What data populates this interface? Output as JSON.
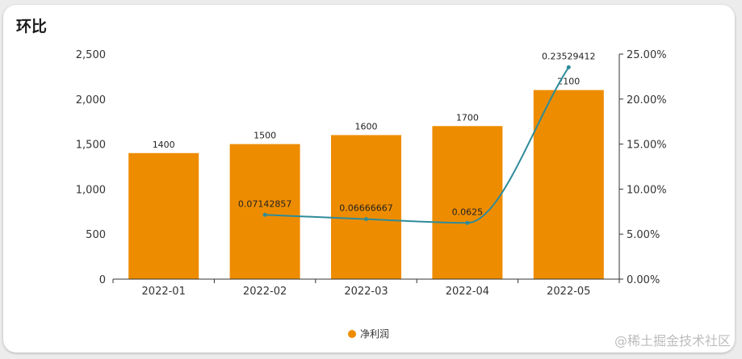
{
  "title": "环比",
  "watermark": "@稀土掘金技术社区",
  "colors": {
    "bar": "#EE8C00",
    "line": "#2E8B9A",
    "axis": "#333333"
  },
  "chart_data": {
    "type": "bar",
    "categories": [
      "2022-01",
      "2022-02",
      "2022-03",
      "2022-04",
      "2022-05"
    ],
    "series": [
      {
        "name": "净利润",
        "type": "bar",
        "axis": "left",
        "values": [
          1400,
          1500,
          1600,
          1700,
          2100
        ]
      },
      {
        "type": "line",
        "axis": "right",
        "smooth": true,
        "values": [
          null,
          0.07142857,
          0.06666667,
          0.0625,
          0.23529412
        ],
        "labels": [
          "",
          "0.07142857",
          "0.06666667",
          "0.0625",
          "0.23529412"
        ]
      }
    ],
    "y_left": {
      "min": 0,
      "max": 2500,
      "ticks": [
        0,
        500,
        1000,
        1500,
        2000,
        2500
      ],
      "tick_labels": [
        "0",
        "500",
        "1,000",
        "1,500",
        "2,000",
        "2,500"
      ]
    },
    "y_right": {
      "min": 0,
      "max": 0.25,
      "ticks": [
        0,
        0.05,
        0.1,
        0.15,
        0.2,
        0.25
      ],
      "tick_labels": [
        "0.00%",
        "5.00%",
        "10.00%",
        "15.00%",
        "20.00%",
        "25.00%"
      ]
    },
    "bar_labels": [
      "1400",
      "1500",
      "1600",
      "1700",
      "2100"
    ],
    "legend": {
      "position": "bottom-center",
      "items": [
        "净利润"
      ]
    },
    "grid": false
  }
}
